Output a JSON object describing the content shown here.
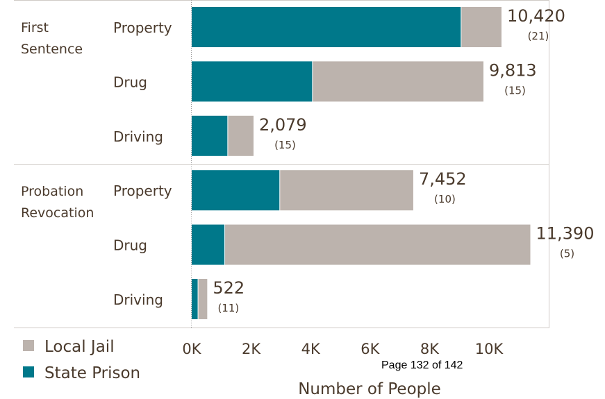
{
  "chart_data": {
    "type": "bar",
    "stacked": true,
    "orientation": "horizontal",
    "groups": [
      {
        "label": "First Sentence",
        "rows": [
          {
            "category": "Property",
            "state_prison": 9050,
            "local_jail": 1370,
            "total_label": "10,420",
            "count_label": "(21)"
          },
          {
            "category": "Drug",
            "state_prison": 4050,
            "local_jail": 5763,
            "total_label": "9,813",
            "count_label": "(15)"
          },
          {
            "category": "Driving",
            "state_prison": 1200,
            "local_jail": 879,
            "total_label": "2,079",
            "count_label": "(15)"
          }
        ]
      },
      {
        "label": "Probation Revocation",
        "rows": [
          {
            "category": "Property",
            "state_prison": 2950,
            "local_jail": 4502,
            "total_label": "7,452",
            "count_label": "(10)"
          },
          {
            "category": "Drug",
            "state_prison": 1100,
            "local_jail": 10290,
            "total_label": "11,390",
            "count_label": "(5)"
          },
          {
            "category": "Driving",
            "state_prison": 200,
            "local_jail": 322,
            "total_label": "522",
            "count_label": "(11)"
          }
        ]
      }
    ],
    "series": [
      {
        "name": "State Prison",
        "key": "state_prison",
        "color": "#00788a"
      },
      {
        "name": "Local Jail",
        "key": "local_jail",
        "color": "#bcb3ad"
      }
    ],
    "legend": [
      "Local Jail",
      "State Prison"
    ],
    "legend_position": "bottom-left",
    "xticks": [
      "0K",
      "2K",
      "4K",
      "6K",
      "8K",
      "10K"
    ],
    "xtick_values": [
      0,
      2000,
      4000,
      6000,
      8000,
      10000
    ],
    "xlim": [
      0,
      11500
    ],
    "xlabel": "Number of People"
  },
  "footer": "Page 132 of 142"
}
